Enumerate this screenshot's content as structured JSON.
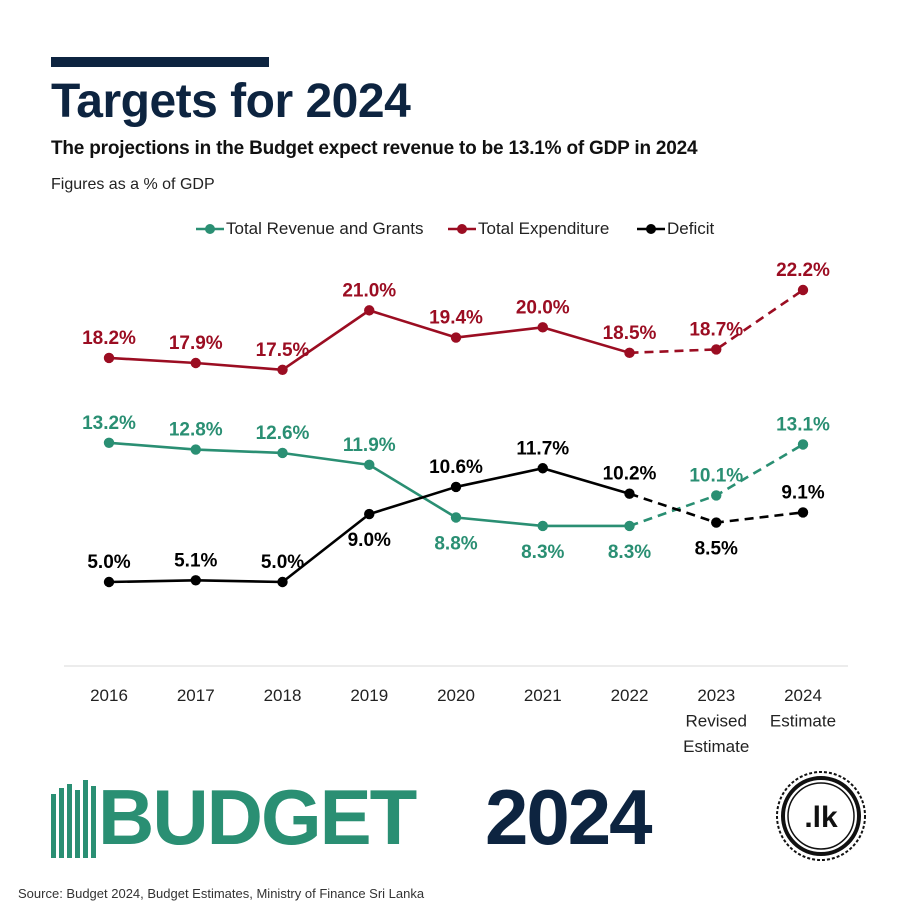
{
  "header": {
    "title": "Targets for 2024",
    "subtitle": "The projections in the Budget expect revenue to be 13.1% of GDP in 2024",
    "units": "Figures as a % of GDP"
  },
  "colors": {
    "navy": "#0d2440",
    "revenue": "#2a8f73",
    "expenditure": "#9b0d22",
    "deficit": "#000000"
  },
  "chart_data": {
    "type": "line",
    "title": "Targets for 2024",
    "categories": [
      "2016",
      "2017",
      "2018",
      "2019",
      "2020",
      "2021",
      "2022",
      "2023 Revised Estimate",
      "2024 Estimate"
    ],
    "category_labels": [
      [
        "2016"
      ],
      [
        "2017"
      ],
      [
        "2018"
      ],
      [
        "2019"
      ],
      [
        "2020"
      ],
      [
        "2021"
      ],
      [
        "2022"
      ],
      [
        "2023",
        "Revised",
        "Estimate"
      ],
      [
        "2024",
        "Estimate"
      ]
    ],
    "actual_through_index": 6,
    "projection_style": "dashed",
    "ylim": [
      0,
      25
    ],
    "grid": false,
    "legend_position": "top",
    "series": [
      {
        "name": "Total Revenue and Grants",
        "color": "#2a8f73",
        "values": [
          13.2,
          12.8,
          12.6,
          11.9,
          8.8,
          8.3,
          8.3,
          10.1,
          13.1
        ],
        "labels": [
          "13.2%",
          "12.8%",
          "12.6%",
          "11.9%",
          "8.8%",
          "8.3%",
          "8.3%",
          "10.1%",
          "13.1%"
        ],
        "label_pos": [
          "above",
          "above",
          "above",
          "above",
          "below",
          "below",
          "below",
          "above",
          "above"
        ]
      },
      {
        "name": "Total Expenditure",
        "color": "#9b0d22",
        "values": [
          18.2,
          17.9,
          17.5,
          21.0,
          19.4,
          20.0,
          18.5,
          18.7,
          22.2
        ],
        "labels": [
          "18.2%",
          "17.9%",
          "17.5%",
          "21.0%",
          "19.4%",
          "20.0%",
          "18.5%",
          "18.7%",
          "22.2%"
        ],
        "label_pos": [
          "above",
          "above",
          "above",
          "above",
          "above",
          "above",
          "above",
          "above",
          "above"
        ]
      },
      {
        "name": "Deficit",
        "color": "#000000",
        "values": [
          5.0,
          5.1,
          5.0,
          9.0,
          10.6,
          11.7,
          10.2,
          8.5,
          9.1
        ],
        "labels": [
          "5.0%",
          "5.1%",
          "5.0%",
          "9.0%",
          "10.6%",
          "11.7%",
          "10.2%",
          "8.5%",
          "9.1%"
        ],
        "label_pos": [
          "above",
          "above",
          "above",
          "below",
          "above",
          "above",
          "above",
          "below",
          "above"
        ]
      }
    ]
  },
  "footer": {
    "logo_word": "BUDGET",
    "logo_year": "2024",
    "seal_text": ".lk",
    "source": "Source: Budget 2024, Budget Estimates, Ministry of Finance Sri Lanka"
  }
}
